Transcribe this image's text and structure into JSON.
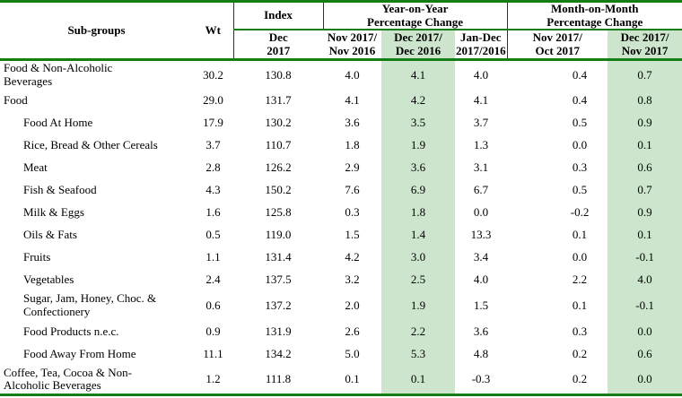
{
  "chart_data": {
    "type": "table",
    "header": {
      "subgroups": "Sub-groups",
      "wt": "Wt",
      "index_group": "Index",
      "yoy_group": "Year-on-Year\nPercentage Change",
      "mom_group": "Month-on-Month\nPercentage Change",
      "sub_columns": [
        "Dec\n2017",
        "Nov 2017/\nNov 2016",
        "Dec 2017/\nDec 2016",
        "Jan-Dec\n2017/2016",
        "Nov 2017/\nOct 2017",
        "Dec 2017/\nNov 2017"
      ]
    },
    "highlighted_columns": [
      "Dec 2017/Dec 2016",
      "Dec 2017/Nov 2017"
    ],
    "columns_order": [
      "Sub-groups",
      "Wt",
      "Index Dec 2017",
      "YoY Nov 2017/Nov 2016",
      "YoY Dec 2017/Dec 2016",
      "YoY Jan-Dec 2017/2016",
      "MoM Nov 2017/Oct 2017",
      "MoM Dec 2017/Nov 2017"
    ],
    "rows": [
      {
        "subgroup": "Food & Non-Alcoholic\nBeverages",
        "level": "group",
        "bold": true,
        "values": [
          "30.2",
          "130.8",
          "4.0",
          "4.1",
          "4.0",
          "0.4",
          "0.7"
        ]
      },
      {
        "subgroup": "Food",
        "level": "group",
        "bold": true,
        "values": [
          "29.0",
          "131.7",
          "4.1",
          "4.2",
          "4.1",
          "0.4",
          "0.8"
        ]
      },
      {
        "subgroup": "Food At Home",
        "level": "sub",
        "bold": false,
        "values": [
          "17.9",
          "130.2",
          "3.6",
          "3.5",
          "3.7",
          "0.5",
          "0.9"
        ]
      },
      {
        "subgroup": "Rice, Bread & Other Cereals",
        "level": "sub",
        "bold": false,
        "values": [
          "3.7",
          "110.7",
          "1.8",
          "1.9",
          "1.3",
          "0.0",
          "0.1"
        ]
      },
      {
        "subgroup": "Meat",
        "level": "sub",
        "bold": false,
        "values": [
          "2.8",
          "126.2",
          "2.9",
          "3.6",
          "3.1",
          "0.3",
          "0.6"
        ]
      },
      {
        "subgroup": "Fish & Seafood",
        "level": "sub",
        "bold": false,
        "values": [
          "4.3",
          "150.2",
          "7.6",
          "6.9",
          "6.7",
          "0.5",
          "0.7"
        ]
      },
      {
        "subgroup": "Milk & Eggs",
        "level": "sub",
        "bold": false,
        "values": [
          "1.6",
          "125.8",
          "0.3",
          "1.8",
          "0.0",
          "-0.2",
          "0.9"
        ]
      },
      {
        "subgroup": "Oils & Fats",
        "level": "sub",
        "bold": false,
        "values": [
          "0.5",
          "119.0",
          "1.5",
          "1.4",
          "13.3",
          "0.1",
          "0.1"
        ]
      },
      {
        "subgroup": "Fruits",
        "level": "sub",
        "bold": false,
        "values": [
          "1.1",
          "131.4",
          "4.2",
          "3.0",
          "3.4",
          "0.0",
          "-0.1"
        ]
      },
      {
        "subgroup": "Vegetables",
        "level": "sub",
        "bold": false,
        "values": [
          "2.4",
          "137.5",
          "3.2",
          "2.5",
          "4.0",
          "2.2",
          "4.0"
        ]
      },
      {
        "subgroup": "Sugar, Jam, Honey, Choc. &\nConfectionery",
        "level": "sub",
        "bold": false,
        "values": [
          "0.6",
          "137.2",
          "2.0",
          "1.9",
          "1.5",
          "0.1",
          "-0.1"
        ]
      },
      {
        "subgroup": "Food Products n.e.c.",
        "level": "sub",
        "bold": false,
        "values": [
          "0.9",
          "131.9",
          "2.6",
          "2.2",
          "3.6",
          "0.3",
          "0.0"
        ]
      },
      {
        "subgroup": "Food Away From Home",
        "level": "sub",
        "bold": false,
        "values": [
          "11.1",
          "134.2",
          "5.0",
          "5.3",
          "4.8",
          "0.2",
          "0.6"
        ]
      },
      {
        "subgroup": "Coffee, Tea, Cocoa & Non-\nAlcoholic Beverages",
        "level": "group",
        "bold": true,
        "values": [
          "1.2",
          "111.8",
          "0.1",
          "0.1",
          "-0.3",
          "0.2",
          "0.0"
        ]
      }
    ],
    "colors": {
      "highlight_green": "#cde5cd",
      "rule_green": "#147d14",
      "header_divider_dark": "#2f2f2f"
    }
  }
}
